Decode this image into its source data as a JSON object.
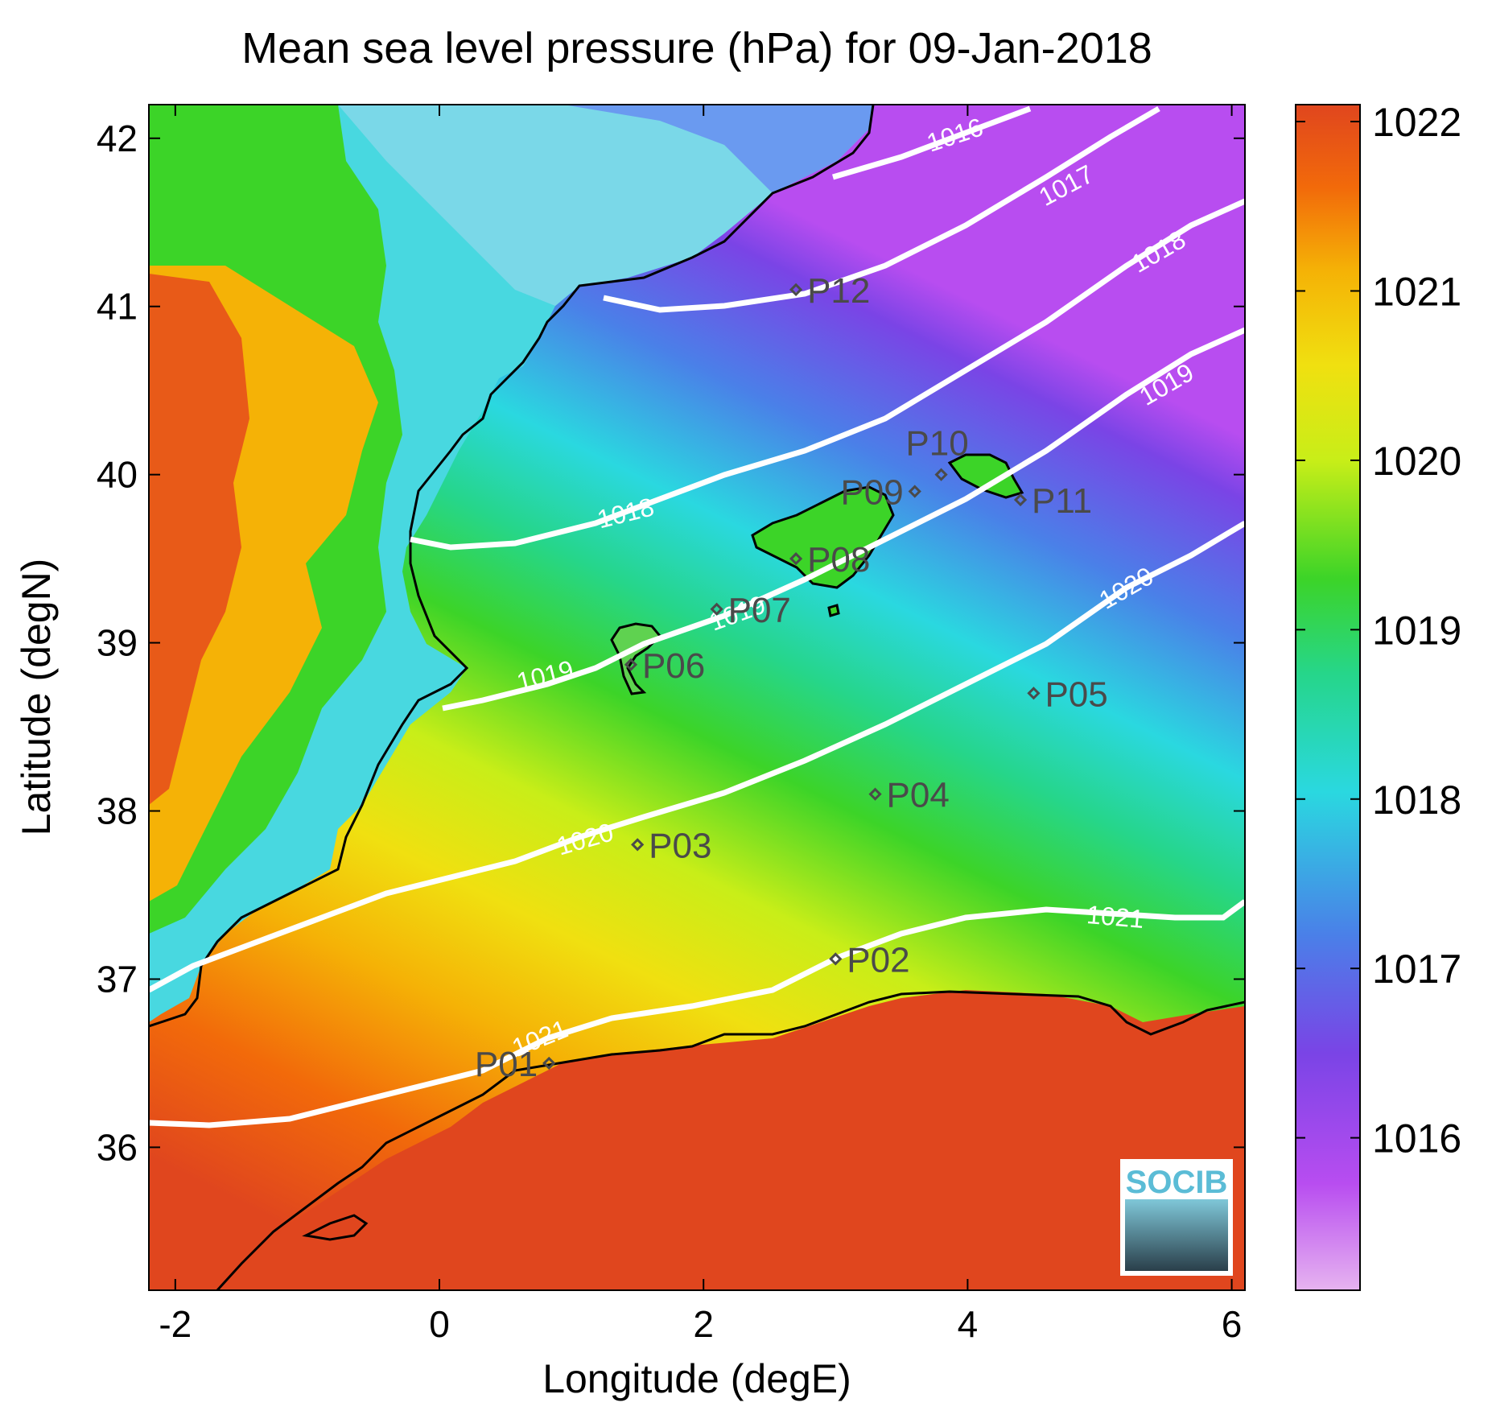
{
  "title": "Mean sea level pressure (hPa) for 09-Jan-2018",
  "chart_data": {
    "type": "heatmap",
    "variable": "Mean sea level pressure",
    "units": "hPa",
    "date": "09-Jan-2018",
    "xlabel": "Longitude (degE)",
    "ylabel": "Latitude (degN)",
    "xlim": [
      -2.2,
      6.1
    ],
    "ylim": [
      35.15,
      42.2
    ],
    "xticks": [
      "-2",
      "0",
      "2",
      "4",
      "6"
    ],
    "yticks": [
      "36",
      "37",
      "38",
      "39",
      "40",
      "41",
      "42"
    ],
    "colorbar": {
      "range": [
        1015.1,
        1022.1
      ],
      "ticks": [
        "1016",
        "1017",
        "1018",
        "1019",
        "1020",
        "1021",
        "1022"
      ],
      "colors": [
        "#e6b3f0",
        "#b84df0",
        "#7a44e6",
        "#4a80e8",
        "#2ad8e0",
        "#26d68a",
        "#3cd428",
        "#c8ee18",
        "#f0e010",
        "#f5b206",
        "#f26a0a",
        "#e0461e"
      ]
    },
    "contour_labels": [
      "1016",
      "1017",
      "1018",
      "1018",
      "1019",
      "1019",
      "1019",
      "1020",
      "1020",
      "1021",
      "1021"
    ],
    "points": [
      {
        "name": "P01",
        "lon": 0.83,
        "lat": 36.5
      },
      {
        "name": "P02",
        "lon": 3.0,
        "lat": 37.12
      },
      {
        "name": "P03",
        "lon": 1.5,
        "lat": 37.8
      },
      {
        "name": "P04",
        "lon": 3.3,
        "lat": 38.1
      },
      {
        "name": "P05",
        "lon": 4.5,
        "lat": 38.7
      },
      {
        "name": "P06",
        "lon": 1.45,
        "lat": 38.87
      },
      {
        "name": "P07",
        "lon": 2.1,
        "lat": 39.2
      },
      {
        "name": "P08",
        "lon": 2.7,
        "lat": 39.5
      },
      {
        "name": "P09",
        "lon": 3.6,
        "lat": 39.9
      },
      {
        "name": "P10",
        "lon": 3.8,
        "lat": 40.0
      },
      {
        "name": "P11",
        "lon": 4.4,
        "lat": 39.85
      },
      {
        "name": "P12",
        "lon": 2.7,
        "lat": 41.1
      }
    ]
  },
  "logo": {
    "text": "SOCIB"
  }
}
